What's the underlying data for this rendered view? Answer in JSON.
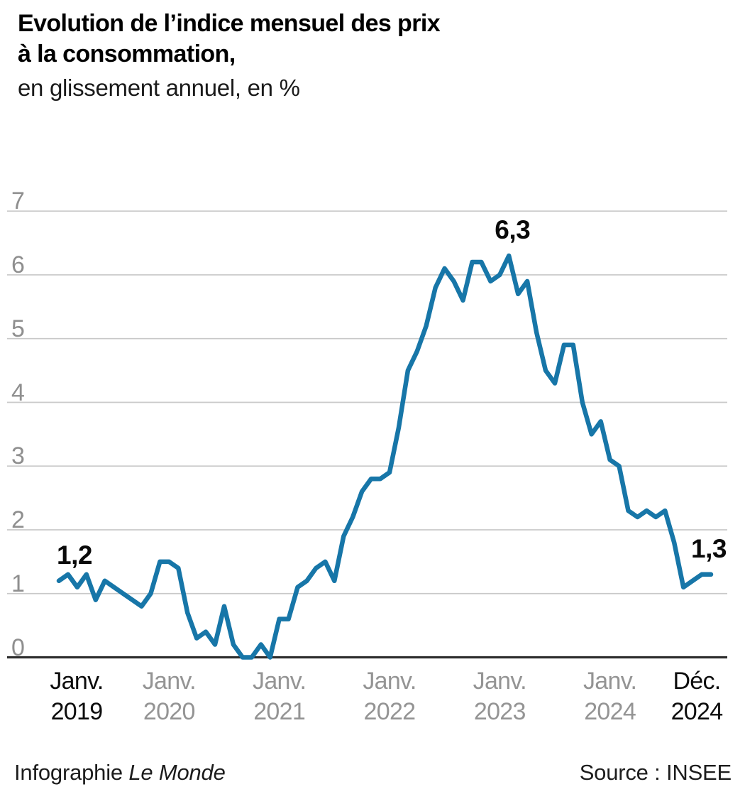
{
  "header": {
    "title_line1": "Evolution de l’indice mensuel des prix",
    "title_line2": "à la consommation,",
    "subtitle": "en glissement annuel, en %"
  },
  "chart_data": {
    "type": "line",
    "title": "Evolution de l’indice mensuel des prix à la consommation, en glissement annuel, en %",
    "unit": "%",
    "grid": true,
    "ylim": [
      0,
      7
    ],
    "yticks": [
      0,
      1,
      2,
      3,
      4,
      5,
      6,
      7
    ],
    "x_monthly_range": {
      "from": "Janv. 2019",
      "to": "Déc. 2024"
    },
    "series": [
      {
        "name": "Indice des prix à la consommation, glissement annuel (%)",
        "values": [
          1.2,
          1.3,
          1.1,
          1.3,
          0.9,
          1.2,
          1.1,
          1.0,
          0.9,
          0.8,
          1.0,
          1.5,
          1.5,
          1.4,
          0.7,
          0.3,
          0.4,
          0.2,
          0.8,
          0.2,
          0.0,
          0.0,
          0.2,
          0.0,
          0.6,
          0.6,
          1.1,
          1.2,
          1.4,
          1.5,
          1.2,
          1.9,
          2.2,
          2.6,
          2.8,
          2.8,
          2.9,
          3.6,
          4.5,
          4.8,
          5.2,
          5.8,
          6.1,
          5.9,
          5.6,
          6.2,
          6.2,
          5.9,
          6.0,
          6.3,
          5.7,
          5.9,
          5.1,
          4.5,
          4.3,
          4.9,
          4.9,
          4.0,
          3.5,
          3.7,
          3.1,
          3.0,
          2.3,
          2.2,
          2.3,
          2.2,
          2.3,
          1.8,
          1.1,
          1.2,
          1.3,
          1.3
        ]
      }
    ],
    "xticks": [
      {
        "line1": "Janv.",
        "line2": "2019",
        "month_index": 0,
        "emphasized": true
      },
      {
        "line1": "Janv.",
        "line2": "2020",
        "month_index": 12,
        "emphasized": false
      },
      {
        "line1": "Janv.",
        "line2": "2021",
        "month_index": 24,
        "emphasized": false
      },
      {
        "line1": "Janv.",
        "line2": "2022",
        "month_index": 36,
        "emphasized": false
      },
      {
        "line1": "Janv.",
        "line2": "2023",
        "month_index": 48,
        "emphasized": false
      },
      {
        "line1": "Janv.",
        "line2": "2024",
        "month_index": 60,
        "emphasized": false
      },
      {
        "line1": "Déc.",
        "line2": "2024",
        "month_index": 71,
        "emphasized": true
      }
    ],
    "annotations": [
      {
        "text": "1,2",
        "month_index": 0,
        "value": 1.2
      },
      {
        "text": "6,3",
        "month_index": 49,
        "value": 6.3
      },
      {
        "text": "1,3",
        "month_index": 71,
        "value": 1.3
      }
    ],
    "colors": {
      "line": "#1776a8",
      "grid": "#c9c9c9",
      "axis": "#2e2e2e",
      "tick_text": "#949494",
      "tick_text_emphasis": "#0d0d0d",
      "annotation_text": "#0a0a0a",
      "y_tick_text": "#8f8f8f"
    },
    "legend_position": "none"
  },
  "footer": {
    "credit_prefix": "Infographie",
    "credit_name": "Le Monde",
    "source": "Source : INSEE"
  }
}
